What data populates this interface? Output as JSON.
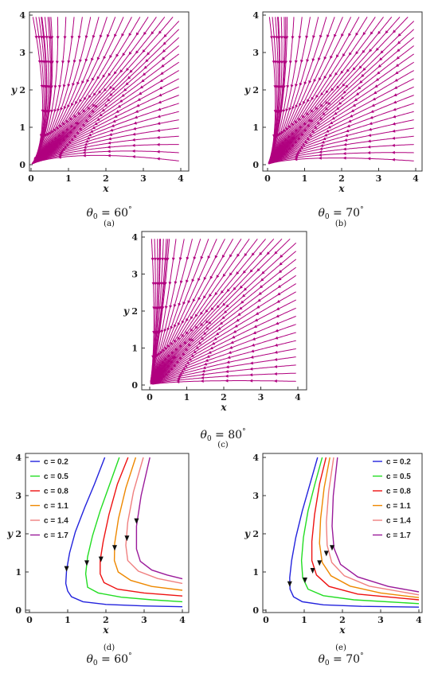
{
  "chart_data": [
    {
      "panel": "(a)",
      "type": "streamplot",
      "theta0": 60,
      "caption_value": "= 60",
      "xlabel": "x",
      "ylabel": "y",
      "xlim": [
        0,
        4
      ],
      "ylim": [
        0,
        4
      ],
      "xticks": [
        "0",
        "1",
        "2",
        "3",
        "4"
      ],
      "yticks": [
        "0",
        "1",
        "2",
        "3",
        "4"
      ],
      "color": "#b0007f"
    },
    {
      "panel": "(b)",
      "type": "streamplot",
      "theta0": 70,
      "caption_value": "= 70",
      "xlabel": "x",
      "ylabel": "y",
      "xlim": [
        0,
        4
      ],
      "ylim": [
        0,
        4
      ],
      "xticks": [
        "0",
        "1",
        "2",
        "3",
        "4"
      ],
      "yticks": [
        "0",
        "1",
        "2",
        "3",
        "4"
      ],
      "color": "#b0007f"
    },
    {
      "panel": "(c)",
      "type": "streamplot",
      "theta0": 80,
      "caption_value": "= 80",
      "xlabel": "x",
      "ylabel": "y",
      "xlim": [
        0,
        4
      ],
      "ylim": [
        0,
        4
      ],
      "xticks": [
        "0",
        "1",
        "2",
        "3",
        "4"
      ],
      "yticks": [
        "0",
        "1",
        "2",
        "3",
        "4"
      ],
      "color": "#b0007f"
    },
    {
      "panel": "(d)",
      "type": "line",
      "theta0": 60,
      "caption_value": "= 60",
      "xlabel": "x",
      "ylabel": "y",
      "xlim": [
        0,
        4
      ],
      "ylim": [
        0,
        4
      ],
      "xticks": [
        "0",
        "1",
        "2",
        "3",
        "4"
      ],
      "yticks": [
        "0",
        "1",
        "2",
        "3",
        "4"
      ],
      "legend_position": "top-left",
      "series": [
        {
          "name": "c = 0.2",
          "color": "#2222dd",
          "x": [
            1.97,
            1.7,
            1.45,
            1.2,
            1.05,
            0.97,
            0.95,
            1.0,
            1.1,
            1.4,
            2.0,
            3.0,
            4.0
          ],
          "y": [
            4.0,
            3.3,
            2.7,
            2.05,
            1.5,
            1.05,
            0.7,
            0.5,
            0.35,
            0.22,
            0.15,
            0.11,
            0.09
          ],
          "arrow_at": [
            0.97,
            1.05
          ]
        },
        {
          "name": "c = 0.5",
          "color": "#22dd22",
          "x": [
            2.35,
            2.1,
            1.85,
            1.65,
            1.52,
            1.47,
            1.52,
            1.8,
            2.4,
            3.2,
            4.0
          ],
          "y": [
            4.0,
            3.3,
            2.6,
            1.95,
            1.4,
            0.95,
            0.6,
            0.45,
            0.34,
            0.27,
            0.22
          ],
          "arrow_at": [
            1.5,
            1.2
          ]
        },
        {
          "name": "c = 0.8",
          "color": "#ee1111",
          "x": [
            2.58,
            2.3,
            2.08,
            1.93,
            1.85,
            1.85,
            1.95,
            2.3,
            3.0,
            4.0
          ],
          "y": [
            4.0,
            3.3,
            2.5,
            1.8,
            1.3,
            0.95,
            0.72,
            0.55,
            0.45,
            0.37
          ],
          "arrow_at": [
            1.87,
            1.3
          ]
        },
        {
          "name": "c = 1.1",
          "color": "#ee8800",
          "x": [
            2.78,
            2.52,
            2.33,
            2.23,
            2.22,
            2.32,
            2.65,
            3.2,
            4.0
          ],
          "y": [
            4.0,
            3.2,
            2.4,
            1.75,
            1.3,
            1.0,
            0.78,
            0.62,
            0.52
          ],
          "arrow_at": [
            2.23,
            1.6
          ]
        },
        {
          "name": "c = 1.4",
          "color": "#f08080",
          "x": [
            2.98,
            2.72,
            2.57,
            2.52,
            2.57,
            2.85,
            3.35,
            4.0
          ],
          "y": [
            4.0,
            3.1,
            2.3,
            1.7,
            1.3,
            1.02,
            0.83,
            0.7
          ],
          "arrow_at": [
            2.55,
            1.85
          ]
        },
        {
          "name": "c = 1.7",
          "color": "#9a1a9a",
          "x": [
            3.15,
            2.92,
            2.8,
            2.8,
            2.9,
            3.2,
            3.6,
            4.0
          ],
          "y": [
            4.0,
            3.0,
            2.2,
            1.6,
            1.28,
            1.05,
            0.92,
            0.82
          ],
          "arrow_at": [
            2.8,
            2.3
          ]
        }
      ]
    },
    {
      "panel": "(e)",
      "type": "line",
      "theta0": 70,
      "caption_value": "= 70",
      "xlabel": "x",
      "ylabel": "y",
      "xlim": [
        0,
        4
      ],
      "ylim": [
        0,
        4
      ],
      "xticks": [
        "0",
        "1",
        "2",
        "3",
        "4"
      ],
      "yticks": [
        "0",
        "1",
        "2",
        "3",
        "4"
      ],
      "legend_position": "top-right",
      "series": [
        {
          "name": "c = 0.2",
          "color": "#2222dd",
          "x": [
            1.35,
            1.15,
            0.95,
            0.78,
            0.67,
            0.62,
            0.63,
            0.72,
            0.95,
            1.5,
            2.5,
            4.0
          ],
          "y": [
            4.0,
            3.3,
            2.6,
            1.9,
            1.3,
            0.85,
            0.55,
            0.35,
            0.22,
            0.14,
            0.1,
            0.08
          ],
          "arrow_at": [
            0.62,
            0.65
          ]
        },
        {
          "name": "c = 0.5",
          "color": "#22dd22",
          "x": [
            1.47,
            1.28,
            1.1,
            0.98,
            0.93,
            0.96,
            1.1,
            1.5,
            2.3,
            4.0
          ],
          "y": [
            4.0,
            3.3,
            2.6,
            1.9,
            1.3,
            0.85,
            0.55,
            0.38,
            0.27,
            0.17
          ],
          "arrow_at": [
            1.02,
            0.75
          ]
        },
        {
          "name": "c = 0.8",
          "color": "#ee1111",
          "x": [
            1.57,
            1.4,
            1.27,
            1.2,
            1.2,
            1.32,
            1.65,
            2.4,
            4.0
          ],
          "y": [
            4.0,
            3.3,
            2.5,
            1.8,
            1.3,
            0.92,
            0.62,
            0.42,
            0.27
          ],
          "arrow_at": [
            1.22,
            1.0
          ]
        },
        {
          "name": "c = 1.1",
          "color": "#ee8800",
          "x": [
            1.67,
            1.52,
            1.43,
            1.4,
            1.47,
            1.7,
            2.2,
            3.0,
            4.0
          ],
          "y": [
            4.0,
            3.2,
            2.4,
            1.75,
            1.25,
            0.9,
            0.63,
            0.45,
            0.33
          ],
          "arrow_at": [
            1.4,
            1.2
          ]
        },
        {
          "name": "c = 1.4",
          "color": "#f08080",
          "x": [
            1.77,
            1.64,
            1.58,
            1.6,
            1.72,
            2.05,
            2.7,
            4.0
          ],
          "y": [
            4.0,
            3.1,
            2.3,
            1.7,
            1.25,
            0.9,
            0.63,
            0.4
          ],
          "arrow_at": [
            1.58,
            1.45
          ]
        },
        {
          "name": "c = 1.7",
          "color": "#9a1a9a",
          "x": [
            1.87,
            1.76,
            1.73,
            1.78,
            1.95,
            2.4,
            3.2,
            4.0
          ],
          "y": [
            4.0,
            3.0,
            2.2,
            1.62,
            1.2,
            0.87,
            0.62,
            0.48
          ],
          "arrow_at": [
            1.73,
            1.6
          ]
        }
      ]
    }
  ]
}
